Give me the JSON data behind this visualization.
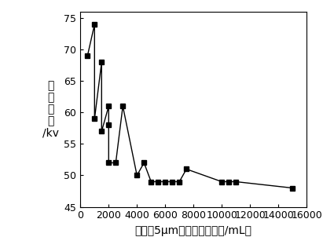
{
  "x": [
    500,
    1000,
    1000,
    1500,
    1500,
    2000,
    2000,
    2000,
    2500,
    3000,
    4000,
    4500,
    5000,
    5500,
    6000,
    6500,
    7000,
    7500,
    10000,
    10500,
    11000,
    15000
  ],
  "y": [
    69,
    74,
    59,
    68,
    57,
    61,
    58,
    52,
    52,
    61,
    50,
    52,
    49,
    49,
    49,
    49,
    49,
    51,
    49,
    49,
    49,
    48
  ],
  "marker": "s",
  "markersize": 4,
  "color": "black",
  "linewidth": 1.0,
  "xlabel": "油液中5μm颞粒物含量（个/mL）",
  "ylabel_chars": [
    "击",
    "穿",
    "电",
    "压",
    "/kv"
  ],
  "xlim": [
    0,
    16000
  ],
  "ylim": [
    45,
    76
  ],
  "xticks": [
    0,
    2000,
    4000,
    6000,
    8000,
    10000,
    12000,
    14000,
    16000
  ],
  "yticks": [
    45,
    50,
    55,
    60,
    65,
    70,
    75
  ],
  "xlabel_fontsize": 10,
  "ylabel_fontsize": 10,
  "tick_fontsize": 9,
  "figsize": [
    4.25,
    3.16
  ],
  "dpi": 100
}
